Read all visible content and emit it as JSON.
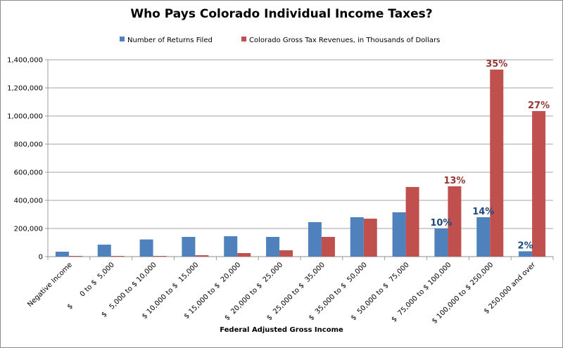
{
  "chart_data": {
    "type": "bar",
    "title": "Who Pays Colorado Individual Income Taxes?",
    "xlabel": "Federal Adjusted Gross Income",
    "ylabel": "",
    "ylim": [
      0,
      1400000
    ],
    "yticks": [
      "0",
      "200,000",
      "400,000",
      "600,000",
      "800,000",
      "1,000,000",
      "1,200,000",
      "1,400,000"
    ],
    "ytick_values": [
      0,
      200000,
      400000,
      600000,
      800000,
      1000000,
      1200000,
      1400000
    ],
    "grid": true,
    "legend_position": "top",
    "categories": [
      "Negative Income",
      "$      0 to $  5,000",
      "$   5,000 to $ 10,000",
      "$ 10,000 to $  15,000",
      "$ 15,000 to $  20,000",
      "$  20,000 to $  25,000",
      "$  25,000 to $  35,000",
      "$  35,000 to $  50,000",
      "$  50,000 to $  75,000",
      "$  75,000 to $ 100,000",
      "$ 100,000 to $ 250,000",
      "$ 250,000 and over"
    ],
    "series": [
      {
        "name": "Number of Returns Filed",
        "color": "#4f81bd",
        "values": [
          35000,
          85000,
          122000,
          140000,
          145000,
          140000,
          245000,
          280000,
          315000,
          200000,
          280000,
          38000
        ],
        "labels": [
          "",
          "",
          "",
          "",
          "",
          "",
          "",
          "",
          "",
          "10%",
          "14%",
          "2%"
        ]
      },
      {
        "name": "Colorado Gross Tax Revenues, in Thousands of Dollars",
        "color": "#c0504d",
        "values": [
          5000,
          5000,
          5000,
          10000,
          25000,
          45000,
          140000,
          270000,
          495000,
          500000,
          1330000,
          1035000
        ],
        "labels": [
          "",
          "",
          "",
          "",
          "",
          "",
          "",
          "",
          "",
          "13%",
          "35%",
          "27%"
        ]
      }
    ],
    "label_colors": [
      "#1f497d",
      "#943634"
    ]
  }
}
